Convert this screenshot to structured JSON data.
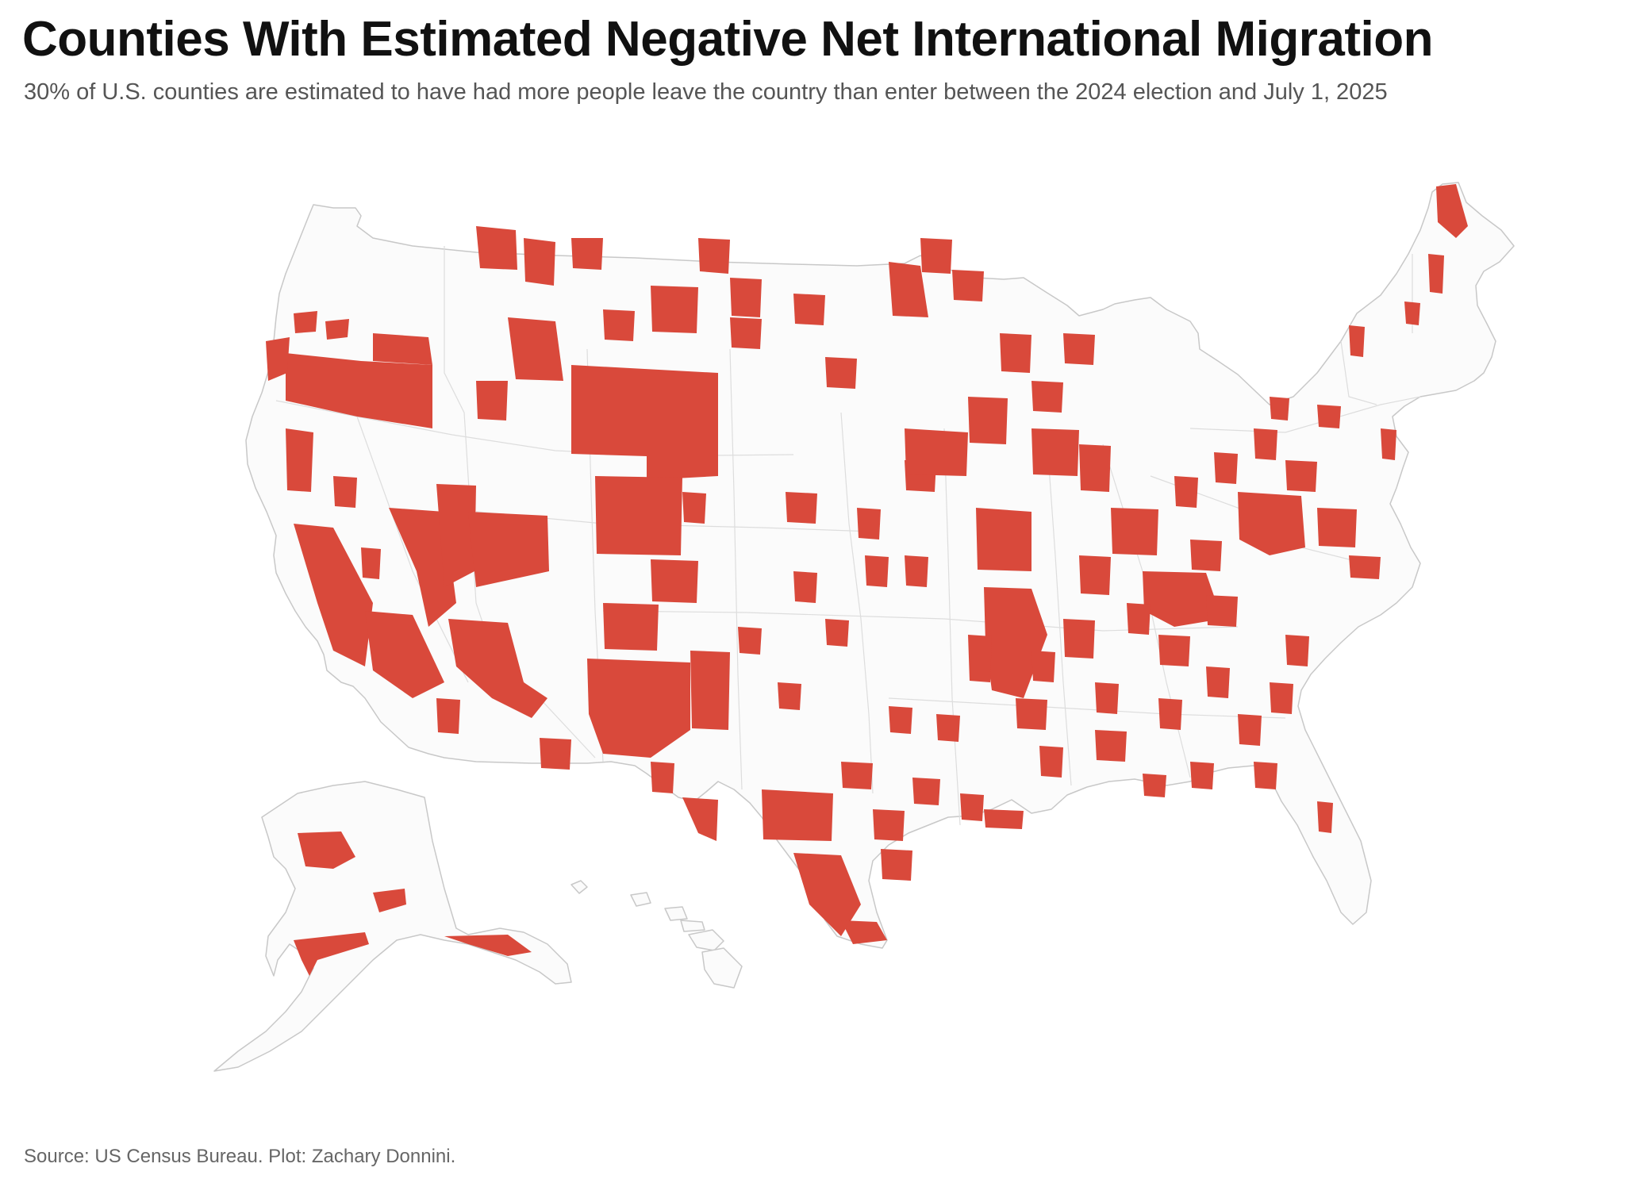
{
  "title": "Counties With Estimated Negative Net International Migration",
  "subtitle": "30% of U.S. counties are estimated to have had more people leave the country than enter between the 2024 election and July 1, 2025",
  "source": "Source: US Census Bureau. Plot: Zachary Donnini.",
  "colors": {
    "negative": "#d9493b",
    "land": "#fbfbfb",
    "border": "#c8c8c8"
  }
}
